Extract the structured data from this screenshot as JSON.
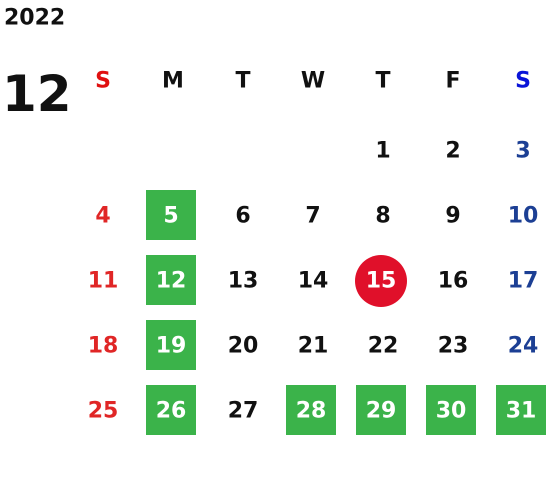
{
  "year": "2022",
  "month": "12",
  "weekdays": [
    "S",
    "M",
    "T",
    "W",
    "T",
    "F",
    "S"
  ],
  "colors": {
    "sunday": "#e02626",
    "saturday": "#1c3f94",
    "sunday_header": "#e01010",
    "saturday_header": "#0a14d8",
    "weekday": "#111111",
    "on_fill": "#ffffff"
  },
  "weeks": [
    [
      null,
      null,
      null,
      null,
      {
        "day": 1
      },
      {
        "day": 2
      },
      {
        "day": 3
      }
    ],
    [
      {
        "day": 4
      },
      {
        "day": 5,
        "fill": "#3bb34a",
        "shape": "square"
      },
      {
        "day": 6
      },
      {
        "day": 7
      },
      {
        "day": 8
      },
      {
        "day": 9
      },
      {
        "day": 10
      }
    ],
    [
      {
        "day": 11
      },
      {
        "day": 12,
        "fill": "#3bb34a",
        "shape": "square"
      },
      {
        "day": 13
      },
      {
        "day": 14
      },
      {
        "day": 15,
        "fill": "#e0102a",
        "shape": "circle"
      },
      {
        "day": 16
      },
      {
        "day": 17
      }
    ],
    [
      {
        "day": 18
      },
      {
        "day": 19,
        "fill": "#3bb34a",
        "shape": "square"
      },
      {
        "day": 20
      },
      {
        "day": 21
      },
      {
        "day": 22
      },
      {
        "day": 23
      },
      {
        "day": 24
      }
    ],
    [
      {
        "day": 25
      },
      {
        "day": 26,
        "fill": "#3bb34a",
        "shape": "square"
      },
      {
        "day": 27
      },
      {
        "day": 28,
        "fill": "#3bb34a",
        "shape": "square"
      },
      {
        "day": 29,
        "fill": "#3bb34a",
        "shape": "square"
      },
      {
        "day": 30,
        "fill": "#3bb34a",
        "shape": "square"
      },
      {
        "day": 31,
        "fill": "#3bb34a",
        "shape": "square"
      }
    ]
  ]
}
